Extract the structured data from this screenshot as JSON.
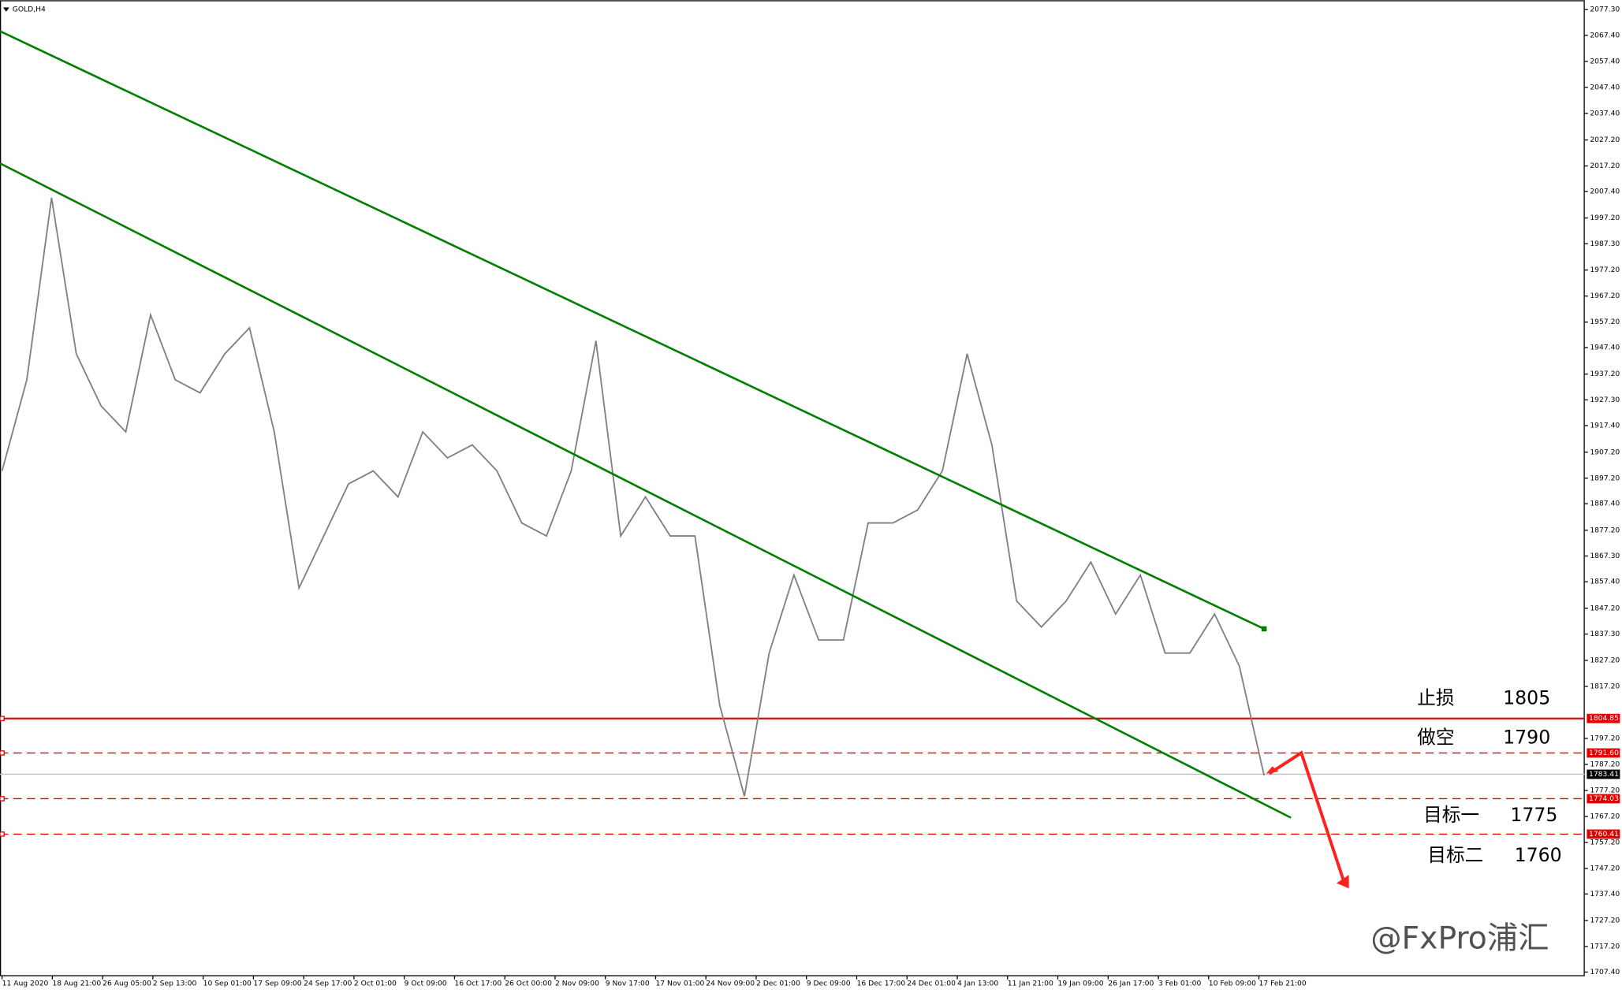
{
  "title": "GOLD,H4",
  "watermark": "@FxPro浦汇",
  "chart_data": {
    "type": "line",
    "series": [
      {
        "color": "#808080",
        "values": [
          1900,
          1935,
          2005,
          1945,
          1925,
          1915,
          1960,
          1935,
          1930,
          1945,
          1955,
          1915,
          1855,
          1875,
          1895,
          1900,
          1890,
          1915,
          1905,
          1910,
          1900,
          1880,
          1875,
          1900,
          1950,
          1875,
          1890,
          1875,
          1875,
          1810,
          1775,
          1830,
          1860,
          1835,
          1835,
          1880,
          1880,
          1885,
          1900,
          1945,
          1910,
          1850,
          1840,
          1850,
          1865,
          1845,
          1860,
          1830,
          1830,
          1845,
          1825,
          1783
        ]
      }
    ],
    "time_labels": [
      "11 Aug 2020",
      "18 Aug 21:00",
      "26 Aug 05:00",
      "2 Sep 13:00",
      "10 Sep 01:00",
      "17 Sep 09:00",
      "24 Sep 17:00",
      "2 Oct 01:00",
      "9 Oct 09:00",
      "16 Oct 17:00",
      "26 Oct 00:00",
      "2 Nov 09:00",
      "9 Nov 17:00",
      "17 Nov 01:00",
      "24 Nov 09:00",
      "2 Dec 01:00",
      "9 Dec 09:00",
      "16 Dec 17:00",
      "24 Dec 01:00",
      "4 Jan 13:00",
      "11 Jan 21:00",
      "19 Jan 09:00",
      "26 Jan 17:00",
      "3 Feb 01:00",
      "10 Feb 09:00",
      "17 Feb 21:00"
    ],
    "ylim": [
      1705.8,
      2079.7
    ],
    "yticks": [
      {
        "value": 2077.3,
        "label": "2077.30"
      },
      {
        "value": 2067.4,
        "label": "2067.40"
      },
      {
        "value": 2057.4,
        "label": "2057.40"
      },
      {
        "value": 2047.4,
        "label": "2047.40"
      },
      {
        "value": 2037.4,
        "label": "2037.40"
      },
      {
        "value": 2027.2,
        "label": "2027.20"
      },
      {
        "value": 2017.2,
        "label": "2017.20"
      },
      {
        "value": 2007.4,
        "label": "2007.40"
      },
      {
        "value": 1997.2,
        "label": "1997.20"
      },
      {
        "value": 1987.3,
        "label": "1987.30"
      },
      {
        "value": 1977.2,
        "label": "1977.20"
      },
      {
        "value": 1967.2,
        "label": "1967.20"
      },
      {
        "value": 1957.2,
        "label": "1957.20"
      },
      {
        "value": 1947.4,
        "label": "1947.40"
      },
      {
        "value": 1937.2,
        "label": "1937.20"
      },
      {
        "value": 1927.3,
        "label": "1927.30"
      },
      {
        "value": 1917.4,
        "label": "1917.40"
      },
      {
        "value": 1907.2,
        "label": "1907.20"
      },
      {
        "value": 1897.2,
        "label": "1897.20"
      },
      {
        "value": 1887.4,
        "label": "1887.40"
      },
      {
        "value": 1877.2,
        "label": "1877.20"
      },
      {
        "value": 1867.3,
        "label": "1867.30"
      },
      {
        "value": 1857.4,
        "label": "1857.40"
      },
      {
        "value": 1847.2,
        "label": "1847.20"
      },
      {
        "value": 1837.3,
        "label": "1837.30"
      },
      {
        "value": 1827.2,
        "label": "1827.20"
      },
      {
        "value": 1817.2,
        "label": "1817.20"
      },
      {
        "value": 1797.2,
        "label": "1797.20"
      },
      {
        "value": 1787.2,
        "label": "1787.20"
      },
      {
        "value": 1777.2,
        "label": "1777.20"
      },
      {
        "value": 1767.2,
        "label": "1767.20"
      },
      {
        "value": 1757.2,
        "label": "1757.20"
      },
      {
        "value": 1747.2,
        "label": "1747.20"
      },
      {
        "value": 1737.4,
        "label": "1737.40"
      },
      {
        "value": 1727.2,
        "label": "1727.20"
      },
      {
        "value": 1717.2,
        "label": "1717.20"
      },
      {
        "value": 1707.4,
        "label": "1707.40"
      }
    ],
    "levels": [
      {
        "value": 1804.85,
        "label": "1804.85",
        "color": "#e00000",
        "style": "solid"
      },
      {
        "value": 1791.6,
        "label": "1791.60",
        "color": "#e00000",
        "style": "dashed"
      },
      {
        "value": 1783.41,
        "label": "1783.41",
        "color": "#c0c0c0",
        "style": "current"
      },
      {
        "value": 1774.03,
        "label": "1774.03",
        "color": "#e00000",
        "style": "dashed"
      },
      {
        "value": 1760.41,
        "label": "1760.41",
        "color": "#e00000",
        "style": "dashed"
      }
    ],
    "trendlines": [
      {
        "values": [
          2069.0,
          1839.3
        ],
        "color": "#008000"
      },
      {
        "values": [
          2018.2,
          1766.7
        ],
        "color": "#008000"
      }
    ],
    "annotations": [
      {
        "text": "止损",
        "number": "1805"
      },
      {
        "text": "做空",
        "number": "1790"
      },
      {
        "text": "目标一",
        "number": "1775"
      },
      {
        "text": "目标二",
        "number": "1760"
      }
    ]
  }
}
